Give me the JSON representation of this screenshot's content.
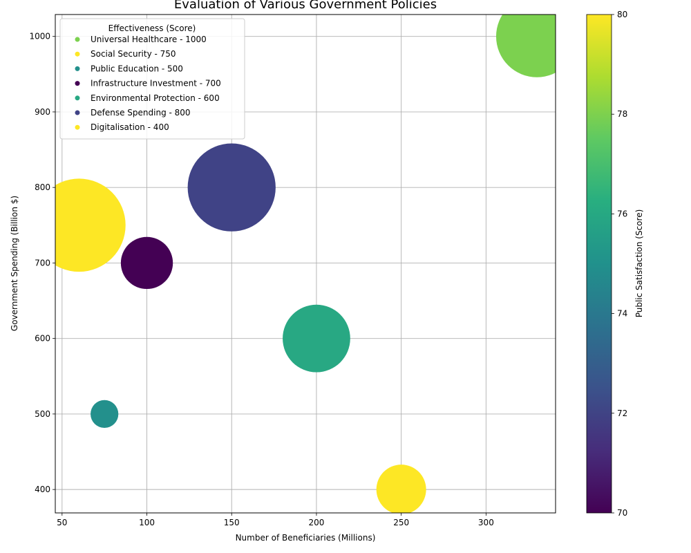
{
  "chart_data": {
    "type": "scatter",
    "title": "Evaluation of Various Government Policies",
    "xlabel": "Number of Beneficiaries (Millions)",
    "ylabel": "Government Spending (Billion $)",
    "xlim": [
      46,
      341
    ],
    "ylim": [
      369,
      1029
    ],
    "xticks": [
      50,
      100,
      150,
      200,
      250,
      300
    ],
    "yticks": [
      400,
      500,
      600,
      700,
      800,
      900,
      1000
    ],
    "grid": true,
    "legend": {
      "title": "Effectiveness (Score)",
      "placement": "top-left"
    },
    "colorbar": {
      "label": "Public Satisfaction (Score)",
      "range": [
        70,
        80
      ],
      "ticks": [
        70,
        72,
        74,
        76,
        78,
        80
      ],
      "colormap": "viridis"
    },
    "points": [
      {
        "label": "Universal Healthcare - 1000",
        "x": 330,
        "y": 1000,
        "size": 4300,
        "satisfaction": 78
      },
      {
        "label": "Social Security - 750",
        "x": 60,
        "y": 750,
        "size": 5600,
        "satisfaction": 80
      },
      {
        "label": "Public Education - 500",
        "x": 75,
        "y": 500,
        "size": 500,
        "satisfaction": 75
      },
      {
        "label": "Infrastructure Investment - 700",
        "x": 100,
        "y": 700,
        "size": 1750,
        "satisfaction": 70
      },
      {
        "label": "Environmental Protection - 600",
        "x": 200,
        "y": 600,
        "size": 2950,
        "satisfaction": 76
      },
      {
        "label": "Defense Spending - 800",
        "x": 150,
        "y": 800,
        "size": 5000,
        "satisfaction": 72
      },
      {
        "label": "Digitalisation - 400",
        "x": 250,
        "y": 400,
        "size": 1600,
        "satisfaction": 80
      }
    ]
  }
}
